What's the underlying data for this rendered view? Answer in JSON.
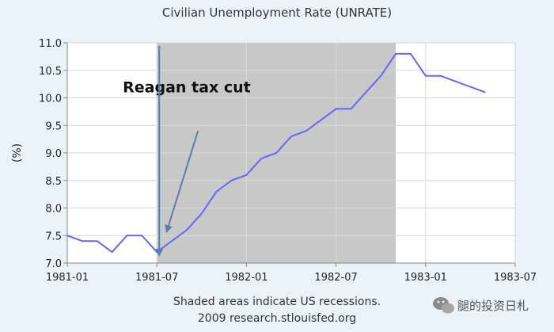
{
  "chart_data": {
    "type": "line",
    "title": "Civilian Unemployment Rate (UNRATE)",
    "ylabel": "(%)",
    "xlabel": "",
    "x_tick_labels": [
      "1981-01",
      "1981-07",
      "1982-01",
      "1982-07",
      "1983-01",
      "1983-07"
    ],
    "y_tick_labels": [
      "7.0",
      "7.5",
      "8.0",
      "8.5",
      "9.0",
      "9.5",
      "10.0",
      "10.5",
      "11.0"
    ],
    "ylim": [
      7.0,
      11.0
    ],
    "xlim": [
      "1981-01",
      "1983-07"
    ],
    "grid": true,
    "series": [
      {
        "x": [
          "1981-01",
          "1981-02",
          "1981-03",
          "1981-04",
          "1981-05",
          "1981-06",
          "1981-07",
          "1981-08",
          "1981-09",
          "1981-10",
          "1981-11",
          "1981-12",
          "1982-01",
          "1982-02",
          "1982-03",
          "1982-04",
          "1982-05",
          "1982-06",
          "1982-07",
          "1982-08",
          "1982-09",
          "1982-10",
          "1982-11",
          "1982-12",
          "1983-01",
          "1983-02",
          "1983-03",
          "1983-04",
          "1983-05"
        ],
        "values": [
          7.5,
          7.4,
          7.4,
          7.2,
          7.5,
          7.5,
          7.2,
          7.4,
          7.6,
          7.9,
          8.3,
          8.5,
          8.6,
          8.9,
          9.0,
          9.3,
          9.4,
          9.6,
          9.8,
          9.8,
          10.1,
          10.4,
          10.8,
          10.8,
          10.4,
          10.4,
          10.3,
          10.2,
          10.1
        ],
        "color": "#6666ff"
      }
    ],
    "recession_shading": {
      "start": "1981-07",
      "end": "1982-11",
      "color": "#c8c8c8"
    },
    "annotations": [
      {
        "text": "Reagan tax cut",
        "x": "1981-09",
        "y": 10.1
      }
    ]
  },
  "footer": {
    "line1": "Shaded areas indicate US recessions.",
    "line2": "2009 research.stlouisfed.org"
  },
  "watermark": {
    "text": "腿的投资日札",
    "icon": "wechat-icon"
  }
}
